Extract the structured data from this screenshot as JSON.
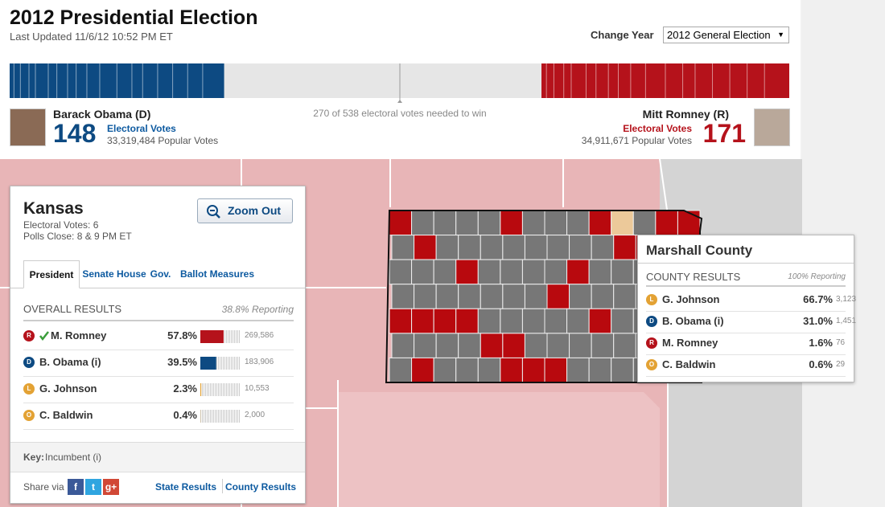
{
  "header": {
    "title": "2012 Presidential Election",
    "last_updated": "Last Updated 11/6/12 10:52 PM ET",
    "change_year_label": "Change Year",
    "year_select": "2012 General Election"
  },
  "electoral": {
    "threshold": "270 of 538 electoral votes needed to win",
    "candidates": [
      {
        "name": "Barack Obama (D)",
        "electoral_votes": 148,
        "electoral_label": "Electoral Votes",
        "popular_votes": "33,319,484 Popular Votes",
        "color": "#0d4a82"
      },
      {
        "name": "Mitt Romney (R)",
        "electoral_votes": 171,
        "electoral_label": "Electoral Votes",
        "popular_votes": "34,911,671 Popular Votes",
        "color": "#b5121b"
      }
    ]
  },
  "state_panel": {
    "state": "Kansas",
    "electoral_votes": "Electoral Votes: 6",
    "polls_close": "Polls Close: 8 & 9 PM ET",
    "zoom_button": "Zoom Out",
    "tabs": [
      "President",
      "Senate",
      "House",
      "Gov.",
      "Ballot Measures"
    ],
    "results_title": "OVERALL RESULTS",
    "reporting": "38.8% Reporting",
    "rows": [
      {
        "party": "R",
        "name": "M. Romney",
        "winner": true,
        "pct": "57.8%",
        "votes": "269,586",
        "color": "#b5121b"
      },
      {
        "party": "D",
        "name": "B. Obama (i)",
        "winner": false,
        "pct": "39.5%",
        "votes": "183,906",
        "color": "#0d4a82"
      },
      {
        "party": "L",
        "name": "G. Johnson",
        "winner": false,
        "pct": "2.3%",
        "votes": "10,553",
        "color": "#e3a234"
      },
      {
        "party": "O",
        "name": "C. Baldwin",
        "winner": false,
        "pct": "0.4%",
        "votes": "2,000",
        "color": "#e3a234"
      }
    ],
    "key_label": "Key:",
    "key_text": "Incumbent (i)",
    "share_label": "Share via",
    "share_icons": [
      "f",
      "t",
      "g+"
    ],
    "links": [
      "State Results",
      "County Results"
    ]
  },
  "county_tooltip": {
    "county": "Marshall County",
    "title": "COUNTY RESULTS",
    "reporting": "100% Reporting",
    "rows": [
      {
        "party": "L",
        "name": "G. Johnson",
        "pct": "66.7%",
        "votes": "3,123",
        "color": "#e3a234"
      },
      {
        "party": "D",
        "name": "B. Obama (i)",
        "pct": "31.0%",
        "votes": "1,451",
        "color": "#0d4a82"
      },
      {
        "party": "R",
        "name": "M. Romney",
        "pct": "1.6%",
        "votes": "76",
        "color": "#b5121b"
      },
      {
        "party": "O",
        "name": "C. Baldwin",
        "pct": "0.6%",
        "votes": "29",
        "color": "#e3a234"
      }
    ]
  }
}
